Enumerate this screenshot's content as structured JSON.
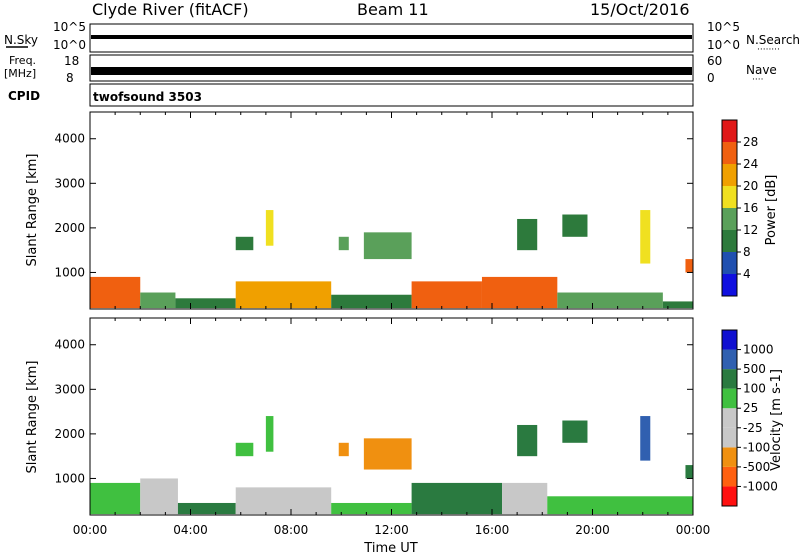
{
  "header": {
    "station": "Clyde River (fitACF)",
    "beam": "Beam 11",
    "date": "15/Oct/2016"
  },
  "nsky_panel": {
    "left_label": "N.Sky",
    "right_label": "N.Search",
    "right_dots": "········",
    "ticks": [
      "10^5",
      "10^0"
    ],
    "right_ticks": [
      "10^5",
      "10^0"
    ]
  },
  "freq_panel": {
    "left_label_top": "Freq.",
    "left_label_bottom": "[MHz]",
    "left_ticks": [
      "18",
      "8"
    ],
    "right_label": "Nave",
    "right_dots": "····",
    "right_ticks": [
      "60",
      "0"
    ]
  },
  "cpid_panel": {
    "label": "CPID",
    "program": "twofsound 3503"
  },
  "colors": {
    "power": [
      "#1010e0",
      "#2050b0",
      "#2d7a3c",
      "#5aa05a",
      "#f0e020",
      "#f0a000",
      "#f06010",
      "#e01818"
    ],
    "velocity": [
      "#ff1010",
      "#ff6010",
      "#f09010",
      "#c8c8c8",
      "#c8c8c8",
      "#40c040",
      "#2a7a40",
      "#3060b0",
      "#1010d0"
    ]
  },
  "chart_data": [
    {
      "type": "heatmap",
      "name": "power",
      "ylabel": "Slant Range [km]",
      "yticks": [
        "1000",
        "2000",
        "3000",
        "4000"
      ],
      "ylim": [
        180,
        4600
      ],
      "colorbar_label": "Power [dB]",
      "colorbar_ticks": [
        "4",
        "8",
        "12",
        "16",
        "20",
        "24",
        "28"
      ],
      "colorbar_range": [
        0,
        32
      ],
      "regions": [
        {
          "x": [
            0.0,
            2.0
          ],
          "y": [
            200,
            900
          ],
          "level": 26
        },
        {
          "x": [
            2.0,
            3.4
          ],
          "y": [
            200,
            550
          ],
          "level": 14
        },
        {
          "x": [
            3.4,
            5.8
          ],
          "y": [
            200,
            420
          ],
          "level": 10
        },
        {
          "x": [
            5.8,
            9.6
          ],
          "y": [
            200,
            800
          ],
          "level": 22
        },
        {
          "x": [
            9.6,
            12.8
          ],
          "y": [
            200,
            500
          ],
          "level": 10
        },
        {
          "x": [
            12.8,
            15.6
          ],
          "y": [
            200,
            800
          ],
          "level": 26
        },
        {
          "x": [
            15.6,
            18.6
          ],
          "y": [
            200,
            900
          ],
          "level": 26
        },
        {
          "x": [
            18.6,
            22.8
          ],
          "y": [
            200,
            550
          ],
          "level": 14
        },
        {
          "x": [
            22.8,
            24.0
          ],
          "y": [
            200,
            350
          ],
          "level": 8
        },
        {
          "x": [
            10.9,
            12.8
          ],
          "y": [
            1300,
            1900
          ],
          "level": 12
        },
        {
          "x": [
            9.9,
            10.3
          ],
          "y": [
            1500,
            1800
          ],
          "level": 14
        },
        {
          "x": [
            7.0,
            7.3
          ],
          "y": [
            1600,
            2400
          ],
          "level": 18
        },
        {
          "x": [
            5.8,
            6.5
          ],
          "y": [
            1500,
            1800
          ],
          "level": 8
        },
        {
          "x": [
            17.0,
            17.8
          ],
          "y": [
            1500,
            2200
          ],
          "level": 8
        },
        {
          "x": [
            18.8,
            19.8
          ],
          "y": [
            1800,
            2300
          ],
          "level": 10
        },
        {
          "x": [
            21.9,
            22.3
          ],
          "y": [
            1200,
            2400
          ],
          "level": 18
        },
        {
          "x": [
            23.7,
            24.0
          ],
          "y": [
            1000,
            1300
          ],
          "level": 26
        }
      ]
    },
    {
      "type": "heatmap",
      "name": "velocity",
      "ylabel": "Slant Range [km]",
      "yticks": [
        "1000",
        "2000",
        "3000",
        "4000"
      ],
      "ylim": [
        180,
        4600
      ],
      "colorbar_label": "Velocity [m s-1]",
      "colorbar_ticks": [
        "1000",
        "500",
        "100",
        "25",
        "-25",
        "-100",
        "-500",
        "-1000"
      ],
      "xlabel": "Time UT",
      "xticks": [
        "00:00",
        "04:00",
        "08:00",
        "12:00",
        "16:00",
        "20:00",
        "00:00"
      ],
      "xlim": [
        0,
        24
      ],
      "regions": [
        {
          "x": [
            0.0,
            2.0
          ],
          "y": [
            200,
            900
          ],
          "level": "green"
        },
        {
          "x": [
            2.0,
            3.5
          ],
          "y": [
            200,
            1000
          ],
          "level": "grey"
        },
        {
          "x": [
            3.5,
            5.8
          ],
          "y": [
            200,
            450
          ],
          "level": "darkgreen"
        },
        {
          "x": [
            5.8,
            9.6
          ],
          "y": [
            200,
            800
          ],
          "level": "grey"
        },
        {
          "x": [
            9.6,
            12.8
          ],
          "y": [
            200,
            450
          ],
          "level": "green"
        },
        {
          "x": [
            12.8,
            16.4
          ],
          "y": [
            200,
            900
          ],
          "level": "darkgreen"
        },
        {
          "x": [
            16.4,
            18.2
          ],
          "y": [
            200,
            900
          ],
          "level": "grey"
        },
        {
          "x": [
            18.2,
            24.0
          ],
          "y": [
            200,
            600
          ],
          "level": "green"
        },
        {
          "x": [
            10.9,
            12.8
          ],
          "y": [
            1200,
            1900
          ],
          "level": "orange"
        },
        {
          "x": [
            9.9,
            10.3
          ],
          "y": [
            1500,
            1800
          ],
          "level": "orange"
        },
        {
          "x": [
            7.0,
            7.3
          ],
          "y": [
            1600,
            2400
          ],
          "level": "green"
        },
        {
          "x": [
            5.8,
            6.5
          ],
          "y": [
            1500,
            1800
          ],
          "level": "green"
        },
        {
          "x": [
            17.0,
            17.8
          ],
          "y": [
            1500,
            2200
          ],
          "level": "darkgreen"
        },
        {
          "x": [
            18.8,
            19.8
          ],
          "y": [
            1800,
            2300
          ],
          "level": "darkgreen"
        },
        {
          "x": [
            21.9,
            22.3
          ],
          "y": [
            1400,
            2400
          ],
          "level": "blue"
        },
        {
          "x": [
            23.7,
            24.0
          ],
          "y": [
            1000,
            1300
          ],
          "level": "darkgreen"
        }
      ]
    }
  ]
}
